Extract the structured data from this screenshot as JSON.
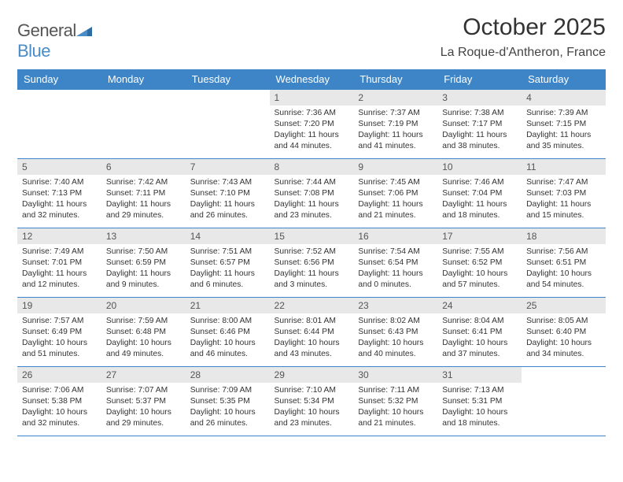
{
  "logo": {
    "word1": "General",
    "word2": "Blue"
  },
  "title": "October 2025",
  "location": "La Roque-d'Antheron, France",
  "colors": {
    "header_bg": "#3d85c6",
    "header_text": "#ffffff",
    "daynum_bg": "#e8e8e8",
    "border": "#3d85c6",
    "logo_blue": "#4a8cc7"
  },
  "weekdays": [
    "Sunday",
    "Monday",
    "Tuesday",
    "Wednesday",
    "Thursday",
    "Friday",
    "Saturday"
  ],
  "weeks": [
    [
      {
        "n": "",
        "t": ""
      },
      {
        "n": "",
        "t": ""
      },
      {
        "n": "",
        "t": ""
      },
      {
        "n": "1",
        "t": "Sunrise: 7:36 AM\nSunset: 7:20 PM\nDaylight: 11 hours and 44 minutes."
      },
      {
        "n": "2",
        "t": "Sunrise: 7:37 AM\nSunset: 7:19 PM\nDaylight: 11 hours and 41 minutes."
      },
      {
        "n": "3",
        "t": "Sunrise: 7:38 AM\nSunset: 7:17 PM\nDaylight: 11 hours and 38 minutes."
      },
      {
        "n": "4",
        "t": "Sunrise: 7:39 AM\nSunset: 7:15 PM\nDaylight: 11 hours and 35 minutes."
      }
    ],
    [
      {
        "n": "5",
        "t": "Sunrise: 7:40 AM\nSunset: 7:13 PM\nDaylight: 11 hours and 32 minutes."
      },
      {
        "n": "6",
        "t": "Sunrise: 7:42 AM\nSunset: 7:11 PM\nDaylight: 11 hours and 29 minutes."
      },
      {
        "n": "7",
        "t": "Sunrise: 7:43 AM\nSunset: 7:10 PM\nDaylight: 11 hours and 26 minutes."
      },
      {
        "n": "8",
        "t": "Sunrise: 7:44 AM\nSunset: 7:08 PM\nDaylight: 11 hours and 23 minutes."
      },
      {
        "n": "9",
        "t": "Sunrise: 7:45 AM\nSunset: 7:06 PM\nDaylight: 11 hours and 21 minutes."
      },
      {
        "n": "10",
        "t": "Sunrise: 7:46 AM\nSunset: 7:04 PM\nDaylight: 11 hours and 18 minutes."
      },
      {
        "n": "11",
        "t": "Sunrise: 7:47 AM\nSunset: 7:03 PM\nDaylight: 11 hours and 15 minutes."
      }
    ],
    [
      {
        "n": "12",
        "t": "Sunrise: 7:49 AM\nSunset: 7:01 PM\nDaylight: 11 hours and 12 minutes."
      },
      {
        "n": "13",
        "t": "Sunrise: 7:50 AM\nSunset: 6:59 PM\nDaylight: 11 hours and 9 minutes."
      },
      {
        "n": "14",
        "t": "Sunrise: 7:51 AM\nSunset: 6:57 PM\nDaylight: 11 hours and 6 minutes."
      },
      {
        "n": "15",
        "t": "Sunrise: 7:52 AM\nSunset: 6:56 PM\nDaylight: 11 hours and 3 minutes."
      },
      {
        "n": "16",
        "t": "Sunrise: 7:54 AM\nSunset: 6:54 PM\nDaylight: 11 hours and 0 minutes."
      },
      {
        "n": "17",
        "t": "Sunrise: 7:55 AM\nSunset: 6:52 PM\nDaylight: 10 hours and 57 minutes."
      },
      {
        "n": "18",
        "t": "Sunrise: 7:56 AM\nSunset: 6:51 PM\nDaylight: 10 hours and 54 minutes."
      }
    ],
    [
      {
        "n": "19",
        "t": "Sunrise: 7:57 AM\nSunset: 6:49 PM\nDaylight: 10 hours and 51 minutes."
      },
      {
        "n": "20",
        "t": "Sunrise: 7:59 AM\nSunset: 6:48 PM\nDaylight: 10 hours and 49 minutes."
      },
      {
        "n": "21",
        "t": "Sunrise: 8:00 AM\nSunset: 6:46 PM\nDaylight: 10 hours and 46 minutes."
      },
      {
        "n": "22",
        "t": "Sunrise: 8:01 AM\nSunset: 6:44 PM\nDaylight: 10 hours and 43 minutes."
      },
      {
        "n": "23",
        "t": "Sunrise: 8:02 AM\nSunset: 6:43 PM\nDaylight: 10 hours and 40 minutes."
      },
      {
        "n": "24",
        "t": "Sunrise: 8:04 AM\nSunset: 6:41 PM\nDaylight: 10 hours and 37 minutes."
      },
      {
        "n": "25",
        "t": "Sunrise: 8:05 AM\nSunset: 6:40 PM\nDaylight: 10 hours and 34 minutes."
      }
    ],
    [
      {
        "n": "26",
        "t": "Sunrise: 7:06 AM\nSunset: 5:38 PM\nDaylight: 10 hours and 32 minutes."
      },
      {
        "n": "27",
        "t": "Sunrise: 7:07 AM\nSunset: 5:37 PM\nDaylight: 10 hours and 29 minutes."
      },
      {
        "n": "28",
        "t": "Sunrise: 7:09 AM\nSunset: 5:35 PM\nDaylight: 10 hours and 26 minutes."
      },
      {
        "n": "29",
        "t": "Sunrise: 7:10 AM\nSunset: 5:34 PM\nDaylight: 10 hours and 23 minutes."
      },
      {
        "n": "30",
        "t": "Sunrise: 7:11 AM\nSunset: 5:32 PM\nDaylight: 10 hours and 21 minutes."
      },
      {
        "n": "31",
        "t": "Sunrise: 7:13 AM\nSunset: 5:31 PM\nDaylight: 10 hours and 18 minutes."
      },
      {
        "n": "",
        "t": ""
      }
    ]
  ]
}
